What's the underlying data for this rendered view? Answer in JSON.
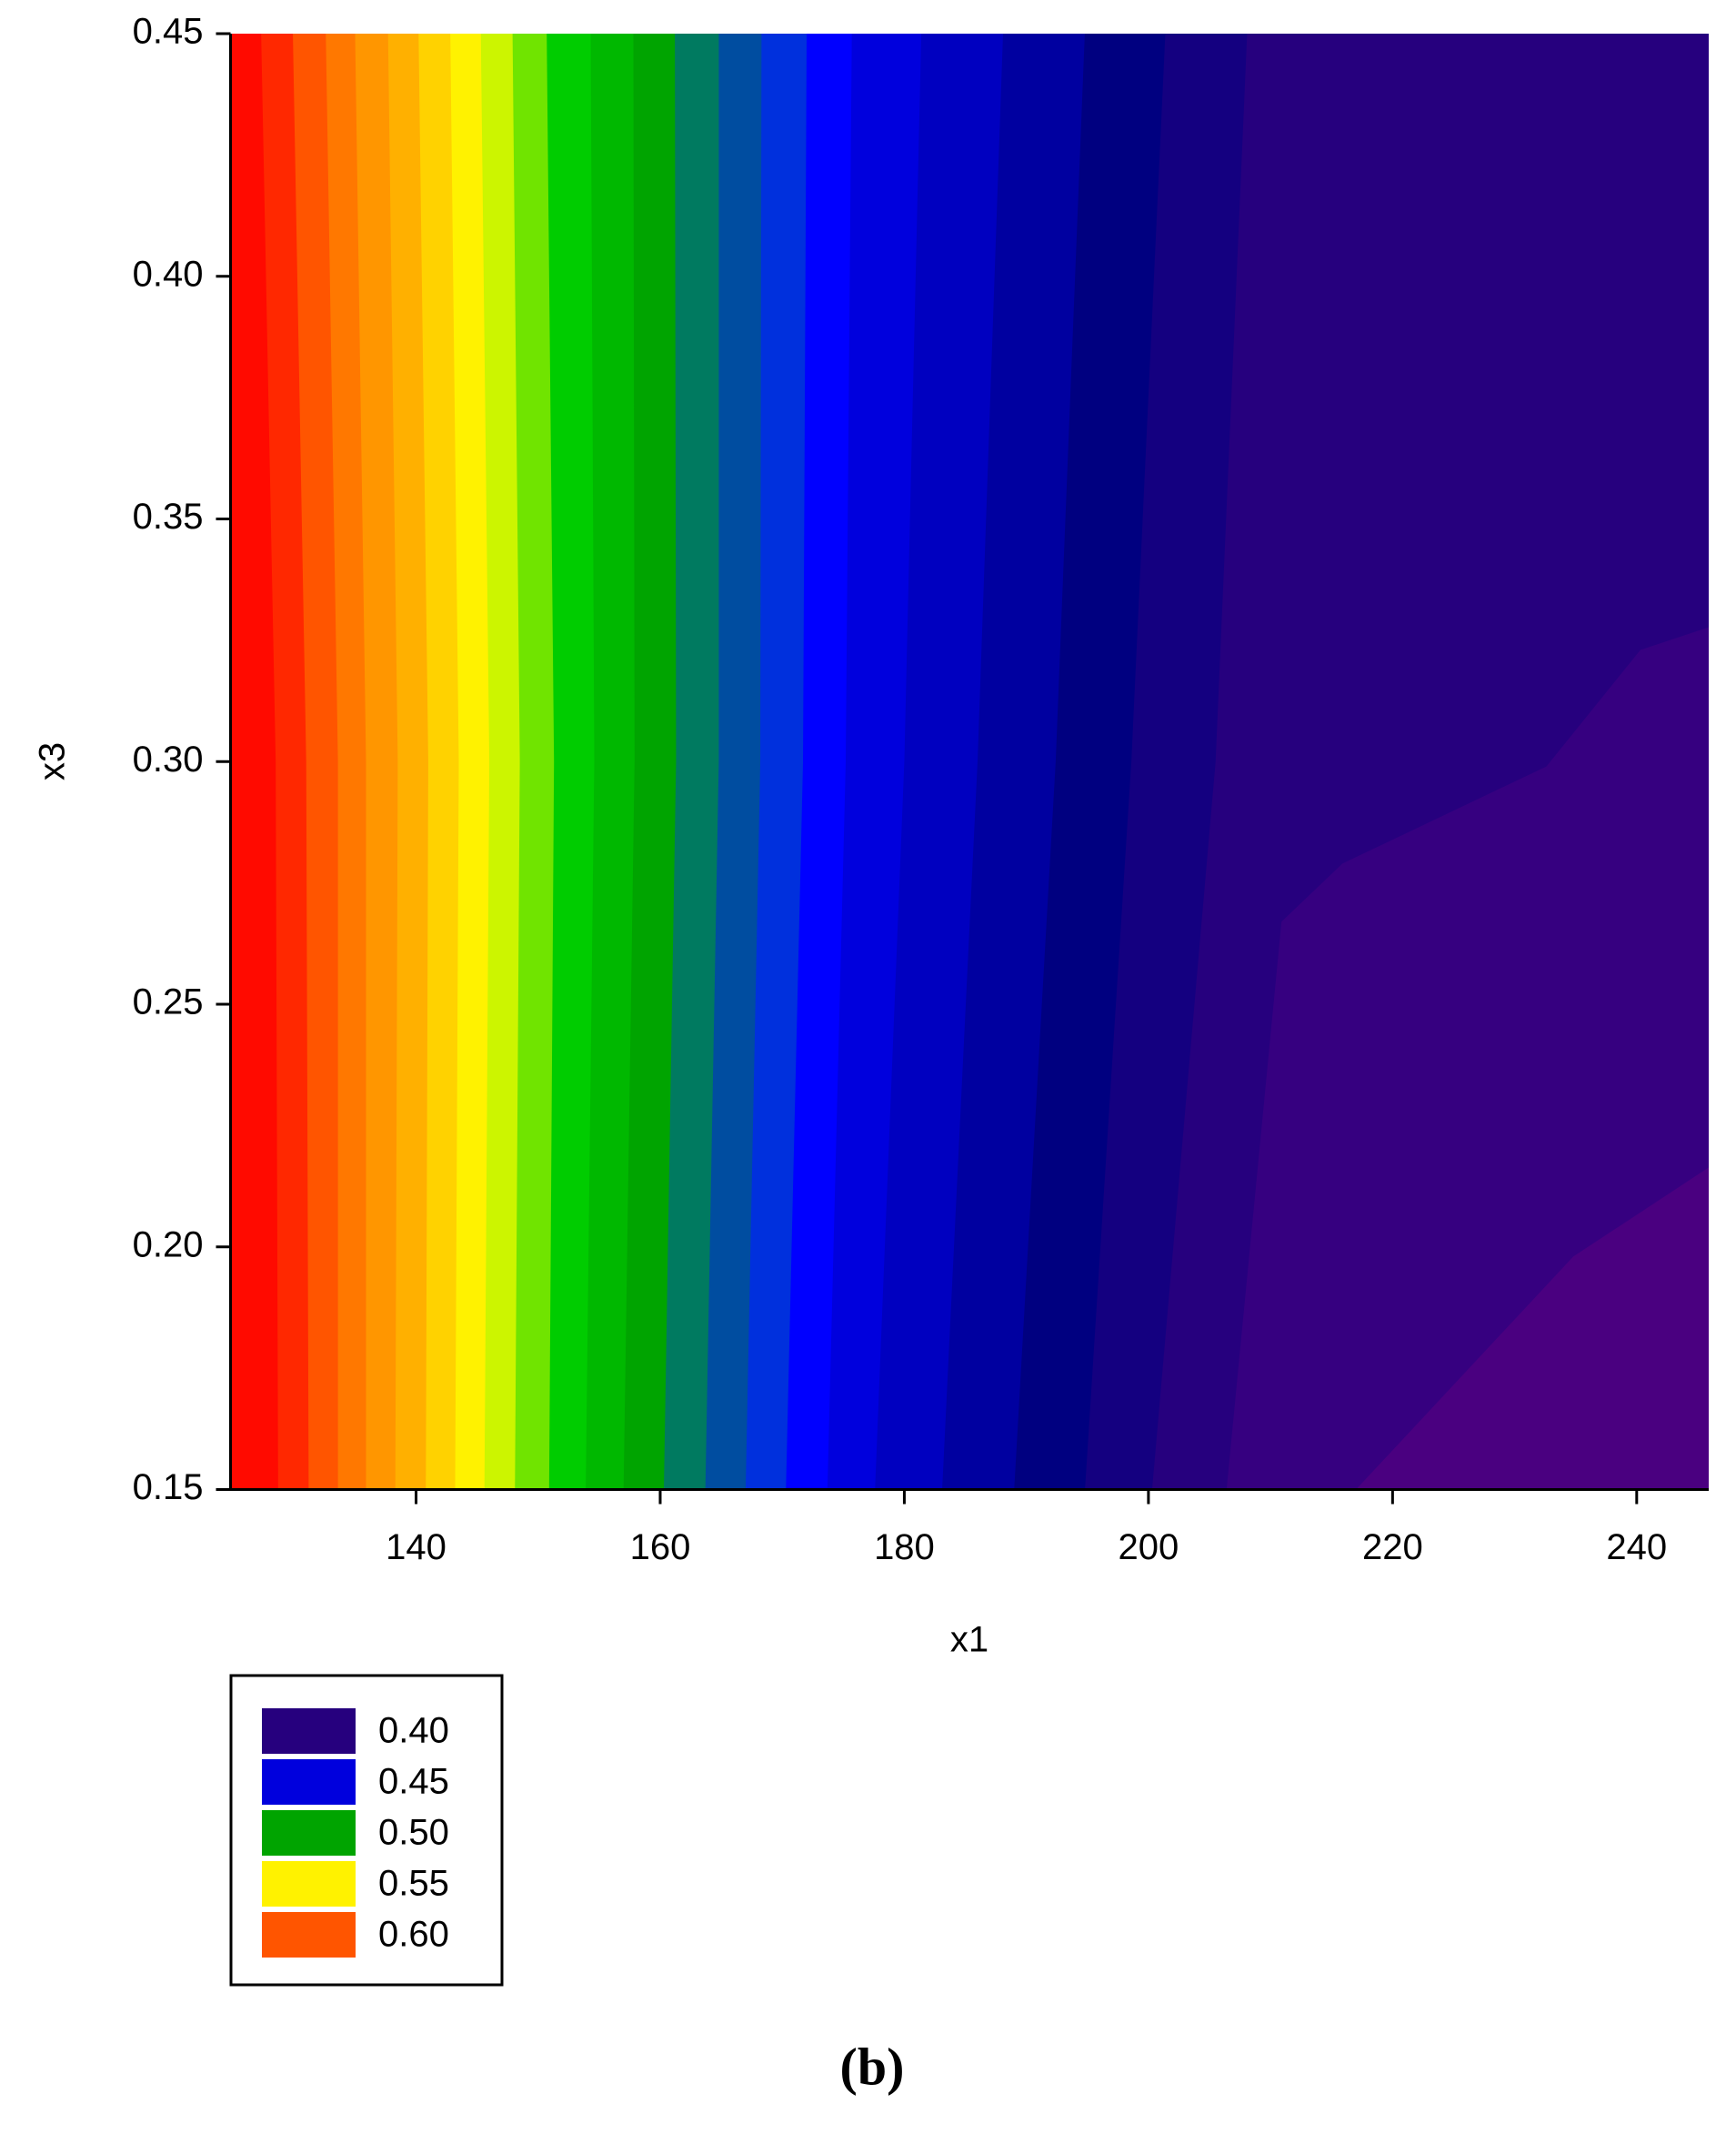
{
  "chart_data": {
    "type": "contour",
    "xlabel": "x1",
    "ylabel": "x3",
    "caption": "(b)",
    "xlim": [
      124.8,
      245.9
    ],
    "ylim": [
      0.15,
      0.45
    ],
    "xticks": [
      140,
      160,
      180,
      200,
      220,
      240
    ],
    "yticks": [
      0.15,
      {
        "value": 0.2,
        "label": "0.20"
      },
      0.25,
      {
        "value": 0.3,
        "label": "0.30"
      },
      0.35,
      {
        "value": 0.4,
        "label": "0.40"
      },
      0.45
    ],
    "bands": [
      {
        "level": 0.62,
        "color": "#ff0a00"
      },
      {
        "level": 0.61,
        "color": "#ff2800"
      },
      {
        "level": 0.6,
        "color": "#ff5500"
      },
      {
        "level": 0.59,
        "color": "#ff7800"
      },
      {
        "level": 0.58,
        "color": "#ff9600"
      },
      {
        "level": 0.57,
        "color": "#ffb000"
      },
      {
        "level": 0.56,
        "color": "#ffd200"
      },
      {
        "level": 0.55,
        "color": "#fff200"
      },
      {
        "level": 0.54,
        "color": "#ccf500"
      },
      {
        "level": 0.53,
        "color": "#70e400"
      },
      {
        "level": 0.52,
        "color": "#00cc00"
      },
      {
        "level": 0.51,
        "color": "#00b800"
      },
      {
        "level": 0.5,
        "color": "#00a400"
      },
      {
        "level": 0.49,
        "color": "#007a60"
      },
      {
        "level": 0.48,
        "color": "#004da0"
      },
      {
        "level": 0.47,
        "color": "#0030dd"
      },
      {
        "level": 0.46,
        "color": "#0000ff"
      },
      {
        "level": 0.45,
        "color": "#0000dd"
      },
      {
        "level": 0.44,
        "color": "#0000c0"
      },
      {
        "level": 0.43,
        "color": "#0000a0"
      },
      {
        "level": 0.42,
        "color": "#000080"
      },
      {
        "level": 0.41,
        "color": "#140080"
      },
      {
        "level": 0.4,
        "color": "#26007e"
      },
      {
        "level": 0.39,
        "color": "#360080"
      },
      {
        "level": 0.38,
        "color": "#4a0080"
      }
    ],
    "contours": [
      {
        "x": [
          127.3,
          128.5,
          128.7
        ],
        "y": [
          0.45,
          0.3,
          0.15
        ]
      },
      {
        "x": [
          129.9,
          131.0,
          131.2
        ],
        "y": [
          0.45,
          0.3,
          0.15
        ]
      },
      {
        "x": [
          132.6,
          133.6,
          133.6
        ],
        "y": [
          0.45,
          0.3,
          0.15
        ]
      },
      {
        "x": [
          135.0,
          135.9,
          135.9
        ],
        "y": [
          0.45,
          0.3,
          0.15
        ]
      },
      {
        "x": [
          137.7,
          138.5,
          138.3
        ],
        "y": [
          0.45,
          0.3,
          0.15
        ]
      },
      {
        "x": [
          140.2,
          141.0,
          140.8
        ],
        "y": [
          0.45,
          0.3,
          0.15
        ]
      },
      {
        "x": [
          142.8,
          143.5,
          143.2
        ],
        "y": [
          0.45,
          0.3,
          0.15
        ]
      },
      {
        "x": [
          145.3,
          146.0,
          145.6
        ],
        "y": [
          0.45,
          0.3,
          0.15
        ]
      },
      {
        "x": [
          147.9,
          148.5,
          148.1
        ],
        "y": [
          0.45,
          0.3,
          0.15
        ]
      },
      {
        "x": [
          150.7,
          151.3,
          150.9
        ],
        "y": [
          0.45,
          0.3,
          0.15
        ]
      },
      {
        "x": [
          154.3,
          154.6,
          153.9
        ],
        "y": [
          0.45,
          0.3,
          0.15
        ]
      },
      {
        "x": [
          157.8,
          157.9,
          157.0
        ],
        "y": [
          0.45,
          0.3,
          0.15
        ]
      },
      {
        "x": [
          161.2,
          161.3,
          160.3
        ],
        "y": [
          0.45,
          0.3,
          0.15
        ]
      },
      {
        "x": [
          164.8,
          164.8,
          163.7
        ],
        "y": [
          0.45,
          0.3,
          0.15
        ]
      },
      {
        "x": [
          168.3,
          168.2,
          167.0
        ],
        "y": [
          0.45,
          0.3,
          0.15
        ]
      },
      {
        "x": [
          172.0,
          171.7,
          170.3
        ],
        "y": [
          0.45,
          0.3,
          0.15
        ]
      },
      {
        "x": [
          175.7,
          175.2,
          173.7
        ],
        "y": [
          0.45,
          0.3,
          0.15
        ]
      },
      {
        "x": [
          181.4,
          180.0,
          177.6
        ],
        "y": [
          0.45,
          0.3,
          0.15
        ]
      },
      {
        "x": [
          188.1,
          186.0,
          183.1
        ],
        "y": [
          0.45,
          0.3,
          0.15
        ]
      },
      {
        "x": [
          194.8,
          192.4,
          189.0
        ],
        "y": [
          0.45,
          0.3,
          0.15
        ]
      },
      {
        "x": [
          201.4,
          198.6,
          194.8
        ],
        "y": [
          0.45,
          0.3,
          0.15
        ]
      },
      {
        "x": [
          208.1,
          205.5,
          200.3
        ],
        "y": [
          0.45,
          0.3,
          0.15
        ]
      },
      {
        "x": [
          245.9,
          240.3,
          232.6,
          215.9,
          210.9,
          206.4
        ],
        "y": [
          0.328,
          0.323,
          0.299,
          0.279,
          0.267,
          0.15
        ]
      },
      {
        "x": [
          245.9,
          234.8,
          217.0
        ],
        "y": [
          0.217,
          0.198,
          0.15
        ]
      }
    ],
    "legend": [
      {
        "label": "0.40",
        "color": "#26007e"
      },
      {
        "label": "0.45",
        "color": "#0000dd"
      },
      {
        "label": "0.50",
        "color": "#00a400"
      },
      {
        "label": "0.55",
        "color": "#fff200"
      },
      {
        "label": "0.60",
        "color": "#ff5500"
      }
    ]
  }
}
